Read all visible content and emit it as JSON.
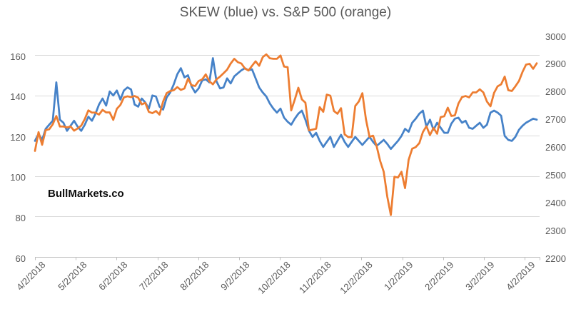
{
  "colors": {
    "background": "#FFFFFF",
    "gridline": "#D9D9D9",
    "axis_line": "#BFBFBF",
    "axis_text": "#595959",
    "title_text": "#595959",
    "watermark_text": "#0D0D0D",
    "skew_blue": "#4682C8",
    "sp500_orange": "#ED7D31"
  },
  "chart_data": {
    "type": "line",
    "title": "SKEW (blue) vs. S&P 500 (orange)",
    "watermark": "BullMarkets.co",
    "grid": true,
    "legend_position": "none (series identified in title)",
    "x_tick_labels": [
      "4/2/2018",
      "5/2/2018",
      "6/2/2018",
      "7/2/2018",
      "8/2/2018",
      "9/2/2018",
      "10/2/2018",
      "11/2/2018",
      "12/2/2018",
      "1/2/2019",
      "2/2/2019",
      "3/2/2019",
      "4/2/2019"
    ],
    "left_axis": {
      "min": 60,
      "max": 170,
      "tick_values": [
        60,
        80,
        100,
        120,
        140,
        160
      ],
      "tick_labels": [
        "60",
        "80",
        "100",
        "120",
        "140",
        "160"
      ]
    },
    "right_axis": {
      "min": 2200,
      "max": 3000,
      "tick_values": [
        2200,
        2300,
        2400,
        2500,
        2600,
        2700,
        2800,
        2900,
        3000
      ],
      "tick_labels": [
        "2200",
        "2300",
        "2400",
        "2500",
        "2600",
        "2700",
        "2800",
        "2900",
        "3000"
      ]
    },
    "series": [
      {
        "name": "SKEW",
        "axis": "left",
        "color": "#4682C8",
        "values": [
          117.5,
          121,
          118,
          123.5,
          125.5,
          127.5,
          146.5,
          128,
          126.5,
          122.5,
          125,
          127.5,
          124.5,
          122.5,
          125.5,
          129.5,
          127.5,
          131,
          135.5,
          138.5,
          135,
          142,
          140,
          142.5,
          138,
          142.5,
          144,
          143,
          135.5,
          134.5,
          138.5,
          136.5,
          133.5,
          140,
          139.5,
          134.5,
          133,
          139,
          141.5,
          145.5,
          150.5,
          153.5,
          149,
          150,
          144.5,
          141.5,
          143.5,
          147.5,
          148,
          146.5,
          158.5,
          147,
          143.5,
          144,
          148.5,
          146,
          149.5,
          151,
          152.5,
          153.5,
          152.5,
          153,
          148.5,
          144,
          141.5,
          139.5,
          136,
          133.5,
          131.5,
          133.5,
          129,
          127,
          125.5,
          128.5,
          131,
          132.5,
          128,
          122.5,
          119.5,
          121.5,
          117.5,
          114.5,
          117,
          119.5,
          114.5,
          117.5,
          120.5,
          117,
          114.5,
          117,
          119.5,
          117.5,
          115.5,
          117.5,
          119.5,
          117,
          115,
          116.5,
          118,
          116,
          113.5,
          115.5,
          117.5,
          120,
          123.5,
          122,
          126.5,
          128.5,
          131,
          132.5,
          124.5,
          128,
          123,
          126.5,
          124,
          121.5,
          121.5,
          126,
          128.5,
          129,
          126.5,
          127.5,
          124,
          123.5,
          125,
          126.5,
          124,
          125.5,
          131.5,
          132.5,
          131.5,
          130,
          120,
          118,
          117.5,
          119.5,
          123,
          125,
          126.5,
          127.5,
          128.5,
          128
        ]
      },
      {
        "name": "S&P 500",
        "axis": "right",
        "color": "#ED7D31",
        "values": [
          2582,
          2650,
          2604,
          2657,
          2660,
          2678,
          2708,
          2670,
          2670,
          2667,
          2670,
          2655,
          2663,
          2673,
          2697,
          2728,
          2720,
          2720,
          2713,
          2730,
          2721,
          2721,
          2694,
          2734,
          2748,
          2775,
          2779,
          2776,
          2780,
          2774,
          2750,
          2755,
          2723,
          2718,
          2726,
          2713,
          2760,
          2790,
          2798,
          2801,
          2812,
          2802,
          2807,
          2842,
          2819,
          2816,
          2834,
          2840,
          2858,
          2833,
          2822,
          2840,
          2850,
          2862,
          2875,
          2897,
          2914,
          2902,
          2897,
          2879,
          2872,
          2889,
          2905,
          2889,
          2920,
          2930,
          2916,
          2914,
          2914,
          2926,
          2886,
          2884,
          2728,
          2767,
          2810,
          2768,
          2756,
          2656,
          2659,
          2662,
          2740,
          2723,
          2785,
          2781,
          2726,
          2716,
          2736,
          2642,
          2632,
          2632,
          2744,
          2760,
          2790,
          2696,
          2633,
          2637,
          2600,
          2546,
          2507,
          2417,
          2351,
          2489,
          2486,
          2507,
          2448,
          2550,
          2590,
          2596,
          2610,
          2650,
          2671,
          2639,
          2665,
          2644,
          2704,
          2707,
          2738,
          2708,
          2710,
          2753,
          2776,
          2780,
          2775,
          2793,
          2793,
          2804,
          2793,
          2760,
          2743,
          2791,
          2815,
          2822,
          2850,
          2801,
          2798,
          2815,
          2834,
          2867,
          2893,
          2896,
          2878,
          2898
        ]
      }
    ]
  }
}
